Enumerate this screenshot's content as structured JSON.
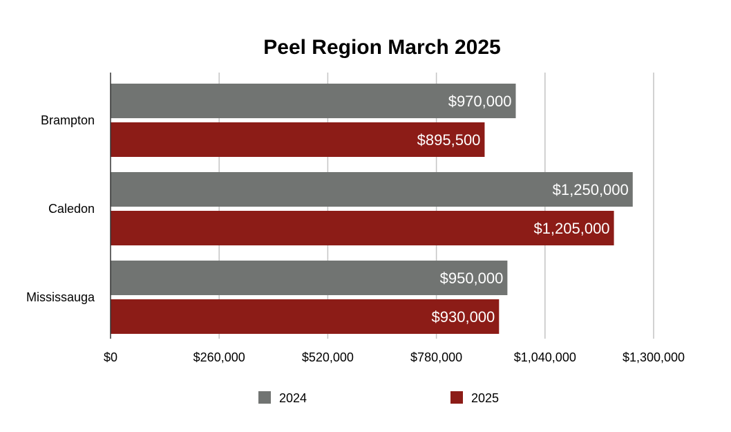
{
  "chart_data": {
    "type": "bar",
    "orientation": "horizontal",
    "title": "Peel Region March 2025",
    "categories": [
      "Brampton",
      "Caledon",
      "Mississauga"
    ],
    "series": [
      {
        "name": "2024",
        "color": "#717472",
        "values": [
          970000,
          1250000,
          950000
        ],
        "labels": [
          "$970,000",
          "$1,250,000",
          "$950,000"
        ]
      },
      {
        "name": "2025",
        "color": "#8c1c17",
        "values": [
          895500,
          1205000,
          930000
        ],
        "labels": [
          "$895,500",
          "$1,205,000",
          "$930,000"
        ]
      }
    ],
    "xlim": [
      0,
      1300000
    ],
    "x_ticks": [
      0,
      260000,
      520000,
      780000,
      1040000,
      1300000
    ],
    "x_tick_labels": [
      "$0",
      "$260,000",
      "$520,000",
      "$780,000",
      "$1,040,000",
      "$1,300,000"
    ],
    "gridlines": "vertical",
    "legend_position": "bottom"
  }
}
